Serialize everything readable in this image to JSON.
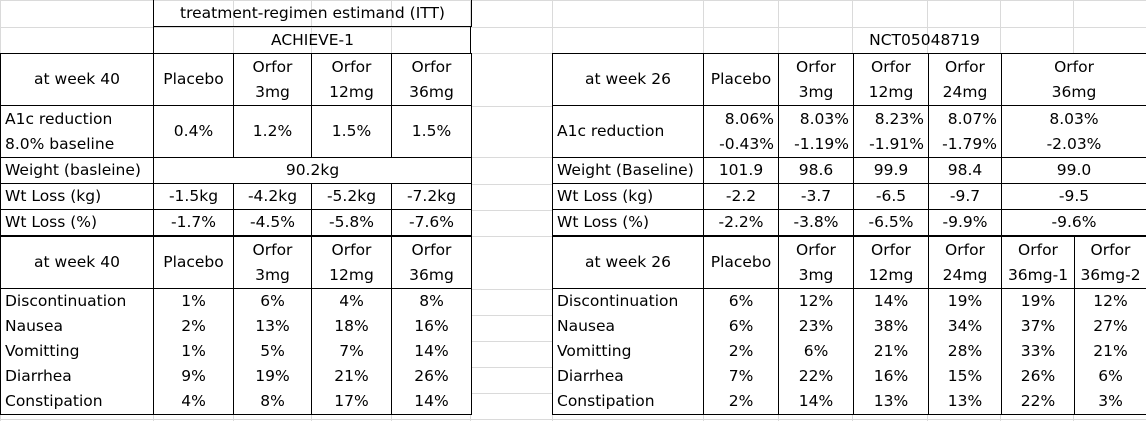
{
  "achieve": {
    "estimand": "treatment-regimen estimand (ITT)",
    "trial": "ACHIEVE-1",
    "efficacy": {
      "timepoint": "at week 40",
      "arms": [
        [
          "Placebo"
        ],
        [
          "Orfor",
          "3mg"
        ],
        [
          "Orfor",
          "12mg"
        ],
        [
          "Orfor",
          "36mg"
        ]
      ],
      "a1c_label": [
        "A1c reduction",
        "8.0% baseline"
      ],
      "a1c": [
        "0.4%",
        "1.2%",
        "1.5%",
        "1.5%"
      ],
      "weight_label": "Weight (basleine)",
      "weight": "90.2kg",
      "wtloss_kg_label": "Wt Loss (kg)",
      "wtloss_kg": [
        "-1.5kg",
        "-4.2kg",
        "-5.2kg",
        "-7.2kg"
      ],
      "wtloss_pct_label": "Wt Loss (%)",
      "wtloss_pct": [
        "-1.7%",
        "-4.5%",
        "-5.8%",
        "-7.6%"
      ]
    },
    "safety": {
      "timepoint": "at week 40",
      "arms": [
        [
          "Placebo"
        ],
        [
          "Orfor",
          "3mg"
        ],
        [
          "Orfor",
          "12mg"
        ],
        [
          "Orfor",
          "36mg"
        ]
      ],
      "rows": [
        {
          "label": "Discontinuation",
          "values": [
            "1%",
            "6%",
            "4%",
            "8%"
          ]
        },
        {
          "label": "Nausea",
          "values": [
            "2%",
            "13%",
            "18%",
            "16%"
          ]
        },
        {
          "label": "Vomitting",
          "values": [
            "1%",
            "5%",
            "7%",
            "14%"
          ]
        },
        {
          "label": "Diarrhea",
          "values": [
            "9%",
            "19%",
            "21%",
            "26%"
          ]
        },
        {
          "label": "Constipation",
          "values": [
            "4%",
            "8%",
            "17%",
            "14%"
          ]
        }
      ]
    }
  },
  "nct": {
    "trial": "NCT05048719",
    "efficacy": {
      "timepoint": "at week 26",
      "arms": [
        [
          "Placebo"
        ],
        [
          "Orfor",
          "3mg"
        ],
        [
          "Orfor",
          "12mg"
        ],
        [
          "Orfor",
          "24mg"
        ],
        [
          "Orfor",
          "36mg"
        ]
      ],
      "a1c_label": "A1c reduction",
      "a1c_baseline": [
        "8.06%",
        "8.03%",
        "8.23%",
        "8.07%",
        "8.03%"
      ],
      "a1c_change": [
        "-0.43%",
        "-1.19%",
        "-1.91%",
        "-1.79%",
        "-2.03%"
      ],
      "weight_label": "Weight (Baseline)",
      "weight": [
        "101.9",
        "98.6",
        "99.9",
        "98.4",
        "99.0"
      ],
      "wtloss_kg_label": "Wt Loss (kg)",
      "wtloss_kg": [
        "-2.2",
        "-3.7",
        "-6.5",
        "-9.7",
        "-9.5"
      ],
      "wtloss_pct_label": "Wt Loss (%)",
      "wtloss_pct": [
        "-2.2%",
        "-3.8%",
        "-6.5%",
        "-9.9%",
        "-9.6%"
      ]
    },
    "safety": {
      "timepoint": "at week 26",
      "arms": [
        [
          "Placebo"
        ],
        [
          "Orfor",
          "3mg"
        ],
        [
          "Orfor",
          "12mg"
        ],
        [
          "Orfor",
          "24mg"
        ],
        [
          "Orfor",
          "36mg-1"
        ],
        [
          "Orfor",
          "36mg-2"
        ]
      ],
      "rows": [
        {
          "label": "Discontinuation",
          "values": [
            "6%",
            "12%",
            "14%",
            "19%",
            "19%",
            "12%"
          ]
        },
        {
          "label": "Nausea",
          "values": [
            "6%",
            "23%",
            "38%",
            "34%",
            "37%",
            "27%"
          ]
        },
        {
          "label": "Vomitting",
          "values": [
            "2%",
            "6%",
            "21%",
            "28%",
            "33%",
            "21%"
          ]
        },
        {
          "label": "Diarrhea",
          "values": [
            "7%",
            "22%",
            "16%",
            "15%",
            "26%",
            "6%"
          ]
        },
        {
          "label": "Constipation",
          "values": [
            "2%",
            "14%",
            "13%",
            "13%",
            "22%",
            "3%"
          ]
        }
      ]
    }
  }
}
